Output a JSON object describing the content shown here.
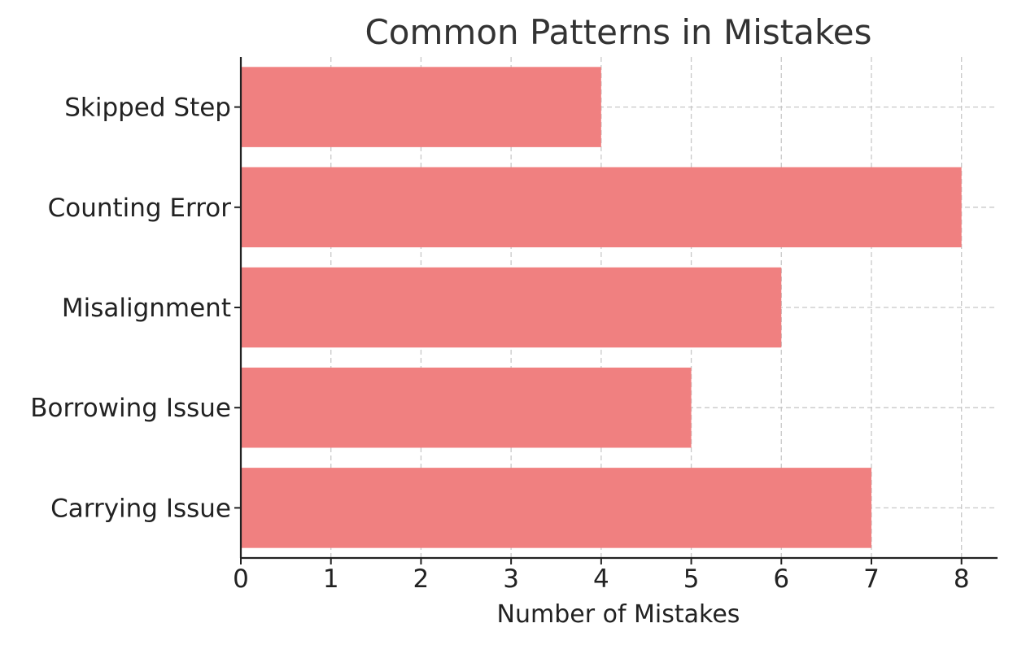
{
  "chart_data": {
    "type": "bar",
    "orientation": "horizontal",
    "title": "Common Patterns in Mistakes",
    "xlabel": "Number of Mistakes",
    "ylabel": "",
    "categories": [
      "Carrying Issue",
      "Borrowing Issue",
      "Misalignment",
      "Counting Error",
      "Skipped Step"
    ],
    "values": [
      7,
      5,
      6,
      8,
      4
    ],
    "xlim": [
      0,
      8.4
    ],
    "xticks": [
      "0",
      "1",
      "2",
      "3",
      "4",
      "5",
      "6",
      "7",
      "8"
    ],
    "grid": true,
    "bar_color": "#f08080"
  }
}
